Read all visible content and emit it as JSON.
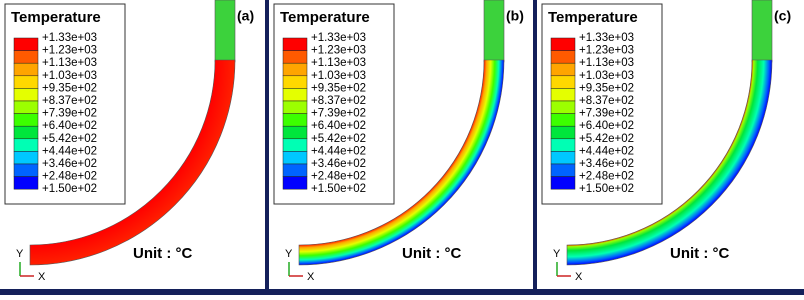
{
  "panels": [
    {
      "label": "(a)",
      "legend_title": "Temperature",
      "legend_labels": [
        "+1.33e+03",
        "+1.23e+03",
        "+1.13e+03",
        "+1.03e+03",
        "+9.35e+02",
        "+8.37e+02",
        "+7.39e+02",
        "+6.40e+02",
        "+5.42e+02",
        "+4.44e+02",
        "+3.46e+02",
        "+2.48e+02",
        "+1.50e+02"
      ],
      "unit": "Unit : °C",
      "axis_x": "X",
      "axis_y": "Y"
    },
    {
      "label": "(b)",
      "legend_title": "Temperature",
      "legend_labels": [
        "+1.33e+03",
        "+1.23e+03",
        "+1.13e+03",
        "+1.03e+03",
        "+9.35e+02",
        "+8.37e+02",
        "+7.39e+02",
        "+6.40e+02",
        "+5.42e+02",
        "+4.44e+02",
        "+3.46e+02",
        "+2.48e+02",
        "+1.50e+02"
      ],
      "unit": "Unit : °C",
      "axis_x": "X",
      "axis_y": "Y"
    },
    {
      "label": "(c)",
      "legend_title": "Temperature",
      "legend_labels": [
        "+1.33e+03",
        "+1.23e+03",
        "+1.13e+03",
        "+1.03e+03",
        "+9.35e+02",
        "+8.37e+02",
        "+7.39e+02",
        "+6.40e+02",
        "+5.42e+02",
        "+4.44e+02",
        "+3.46e+02",
        "+2.48e+02",
        "+1.50e+02"
      ],
      "unit": "Unit : °C",
      "axis_x": "X",
      "axis_y": "Y"
    }
  ]
}
